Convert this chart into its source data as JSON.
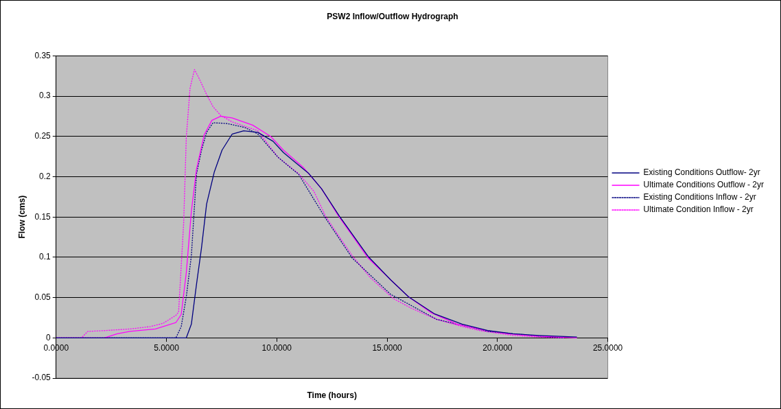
{
  "chart_data": {
    "type": "line",
    "title": "PSW2 Inflow/Outflow Hydrograph",
    "xlabel": "Time (hours)",
    "ylabel": "Flow (cms)",
    "xlim": [
      0,
      25
    ],
    "xticks": [
      {
        "value": 0,
        "label": "0.0000"
      },
      {
        "value": 5,
        "label": "5.0000"
      },
      {
        "value": 10,
        "label": "10.0000"
      },
      {
        "value": 15,
        "label": "15.0000"
      },
      {
        "value": 20,
        "label": "20.0000"
      },
      {
        "value": 25,
        "label": "25.0000"
      }
    ],
    "ylim": [
      -0.05,
      0.35
    ],
    "yticks": [
      -0.05,
      0,
      0.05,
      0.1,
      0.15,
      0.2,
      0.25,
      0.3,
      0.35
    ],
    "grid": "y",
    "legend": "right",
    "marker": "none",
    "series": [
      {
        "name": "Existing Conditions Outflow- 2yr",
        "color": "#000080",
        "line_style": "solid",
        "x": [
          0,
          5.9,
          6.13,
          6.36,
          6.59,
          6.82,
          7.17,
          7.52,
          7.98,
          8.5,
          9.14,
          9.83,
          10.3,
          10.87,
          11.45,
          12.03,
          12.84,
          14.14,
          15.16,
          15.97,
          17.13,
          18.4,
          19.56,
          20.7,
          21.87,
          23.6
        ],
        "values": [
          0,
          0,
          0.017,
          0.066,
          0.112,
          0.166,
          0.206,
          0.233,
          0.253,
          0.257,
          0.255,
          0.244,
          0.23,
          0.217,
          0.204,
          0.185,
          0.151,
          0.101,
          0.072,
          0.051,
          0.03,
          0.017,
          0.009,
          0.005,
          0.003,
          0.001
        ]
      },
      {
        "name": "Ultimate Conditions Outflow - 2yr",
        "color": "#ff00ff",
        "line_style": "solid",
        "x": [
          0,
          2.19,
          2.77,
          3.35,
          4.5,
          5.43,
          5.67,
          5.9,
          6.13,
          6.36,
          6.71,
          7.06,
          7.46,
          7.98,
          8.91,
          9.72,
          10.3,
          11.22,
          12.03,
          12.73,
          13.42,
          14.14,
          15.16,
          15.97,
          17.01,
          18.17,
          19.32,
          20.48,
          21.87,
          23.6
        ],
        "values": [
          0,
          0,
          0.005,
          0.008,
          0.011,
          0.019,
          0.029,
          0.081,
          0.157,
          0.209,
          0.252,
          0.27,
          0.275,
          0.273,
          0.264,
          0.25,
          0.233,
          0.211,
          0.185,
          0.154,
          0.127,
          0.099,
          0.072,
          0.051,
          0.031,
          0.017,
          0.01,
          0.005,
          0.002,
          0
        ]
      },
      {
        "name": "Existing Conditions Inflow - 2yr",
        "color": "#000080",
        "line_style": "dotted",
        "x": [
          0,
          5.43,
          5.67,
          5.9,
          6.13,
          6.36,
          6.59,
          6.82,
          7.11,
          7.75,
          8.56,
          9.14,
          10.06,
          10.99,
          12.15,
          13.42,
          15.16,
          17.24,
          19.56,
          21.87,
          23.0
        ],
        "values": [
          0,
          0,
          0.014,
          0.051,
          0.102,
          0.203,
          0.233,
          0.255,
          0.267,
          0.266,
          0.261,
          0.253,
          0.224,
          0.203,
          0.151,
          0.099,
          0.054,
          0.023,
          0.008,
          0.002,
          0
        ]
      },
      {
        "name": "Ultimate Condition Inflow - 2yr",
        "color": "#ff00ff",
        "line_style": "dotted",
        "x": [
          0,
          1.15,
          1.44,
          2.2,
          3.35,
          4.28,
          4.85,
          5.43,
          5.55,
          5.78,
          5.9,
          6.07,
          6.27,
          6.48,
          6.82,
          7.11,
          7.46,
          7.98,
          9.14,
          10.06,
          10.98,
          11.68,
          12.21,
          12.72,
          13.42,
          14.23,
          15.27,
          16.08,
          17.24,
          18.4,
          19.2,
          20.7,
          21.9,
          23.0
        ],
        "values": [
          0,
          0,
          0.008,
          0.009,
          0.011,
          0.014,
          0.018,
          0.028,
          0.032,
          0.142,
          0.249,
          0.31,
          0.333,
          0.322,
          0.302,
          0.287,
          0.276,
          0.268,
          0.257,
          0.224,
          0.204,
          0.182,
          0.151,
          0.13,
          0.102,
          0.075,
          0.049,
          0.037,
          0.023,
          0.014,
          0.009,
          0.003,
          0.001,
          0
        ]
      }
    ]
  }
}
